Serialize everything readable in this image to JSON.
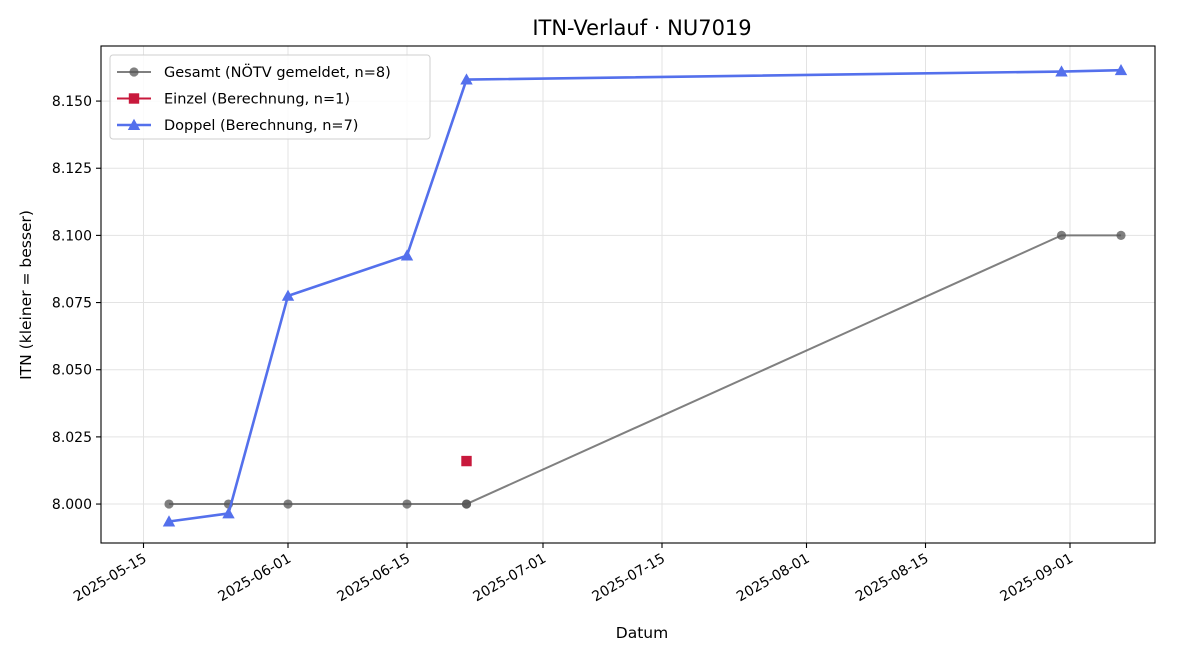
{
  "chart_data": {
    "type": "line",
    "title": "ITN-Verlauf · NU7019",
    "xlabel": "Datum",
    "ylabel": "ITN  (kleiner = besser)",
    "x_type": "date",
    "xlim": [
      "2025-05-10",
      "2025-09-11"
    ],
    "ylim": [
      7.9855,
      8.1705
    ],
    "x_ticks": [
      "2025-05-15",
      "2025-06-01",
      "2025-06-15",
      "2025-07-01",
      "2025-07-15",
      "2025-08-01",
      "2025-08-15",
      "2025-09-01"
    ],
    "y_ticks": [
      8.0,
      8.025,
      8.05,
      8.075,
      8.1,
      8.125,
      8.15
    ],
    "y_tick_labels": [
      "8.000",
      "8.025",
      "8.050",
      "8.075",
      "8.100",
      "8.125",
      "8.150"
    ],
    "grid": true,
    "legend_position": "top-left",
    "series": [
      {
        "name": "Gesamt (NÖTV gemeldet, n=8)",
        "color": "#555555",
        "marker": "circle",
        "x": [
          "2025-05-18",
          "2025-05-25",
          "2025-06-01",
          "2025-06-15",
          "2025-06-22",
          "2025-06-22",
          "2025-08-31",
          "2025-09-07"
        ],
        "y": [
          8.0,
          8.0,
          8.0,
          8.0,
          8.0,
          8.0,
          8.1,
          8.1
        ]
      },
      {
        "name": "Einzel (Berechnung, n=1)",
        "color": "#c8193c",
        "marker": "square",
        "x": [
          "2025-06-22"
        ],
        "y": [
          8.016
        ]
      },
      {
        "name": "Doppel (Berechnung, n=7)",
        "color": "#5470ec",
        "marker": "triangle",
        "x": [
          "2025-05-18",
          "2025-05-25",
          "2025-06-01",
          "2025-06-15",
          "2025-06-22",
          "2025-08-31",
          "2025-09-07"
        ],
        "y": [
          7.9935,
          7.9965,
          8.0775,
          8.0925,
          8.158,
          8.161,
          8.1615
        ]
      }
    ]
  }
}
